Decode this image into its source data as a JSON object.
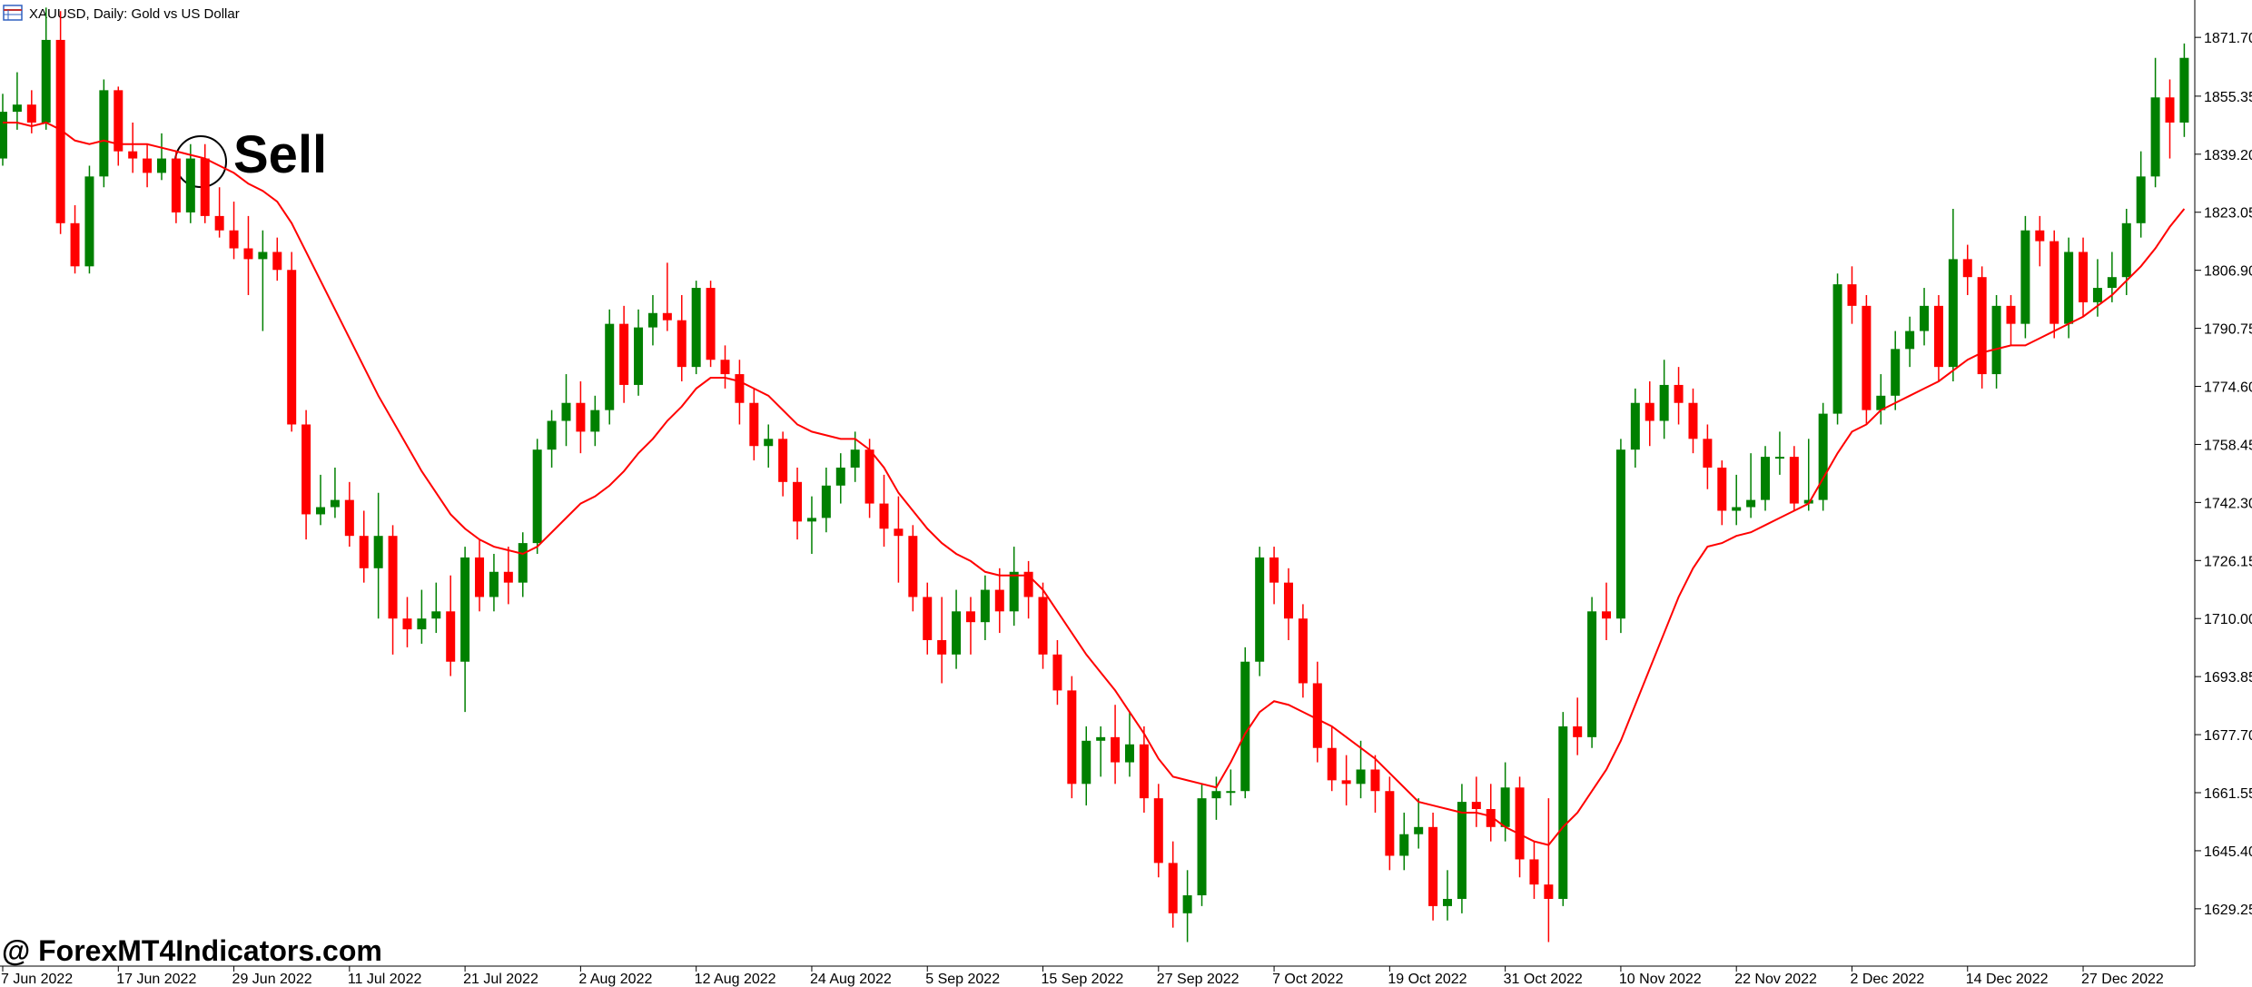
{
  "chart_data": {
    "type": "candlestick",
    "title": "XAUUSD, Daily:  Gold vs US Dollar",
    "annotation": "Sell",
    "watermark": "@ ForexMT4Indicators.com",
    "up_color": "#008000",
    "down_color": "#ff0000",
    "ylim": [
      1613.3,
      1882.1
    ],
    "yticks": [
      {
        "value": 1871.7,
        "label": "1871.70"
      },
      {
        "value": 1855.35,
        "label": "1855.35"
      },
      {
        "value": 1839.2,
        "label": "1839.20"
      },
      {
        "value": 1823.05,
        "label": "1823.05"
      },
      {
        "value": 1806.9,
        "label": "1806.90"
      },
      {
        "value": 1790.75,
        "label": "1790.75"
      },
      {
        "value": 1774.6,
        "label": "1774.60"
      },
      {
        "value": 1758.45,
        "label": "1758.45"
      },
      {
        "value": 1742.3,
        "label": "1742.30"
      },
      {
        "value": 1726.15,
        "label": "1726.15"
      },
      {
        "value": 1710,
        "label": "1710.00"
      },
      {
        "value": 1693.85,
        "label": "1693.85"
      },
      {
        "value": 1677.7,
        "label": "1677.70"
      },
      {
        "value": 1661.55,
        "label": "1661.55"
      },
      {
        "value": 1645.4,
        "label": "1645.40"
      },
      {
        "value": 1629.25,
        "label": "1629.25"
      }
    ],
    "categories": [
      "7 Jun 2022",
      null,
      null,
      null,
      null,
      null,
      null,
      null,
      "17 Jun 2022",
      null,
      null,
      null,
      null,
      null,
      null,
      null,
      "29 Jun 2022",
      null,
      null,
      null,
      null,
      null,
      null,
      null,
      "11 Jul 2022",
      null,
      null,
      null,
      null,
      null,
      null,
      null,
      "21 Jul 2022",
      null,
      null,
      null,
      null,
      null,
      null,
      null,
      "2 Aug 2022",
      null,
      null,
      null,
      null,
      null,
      null,
      null,
      "12 Aug 2022",
      null,
      null,
      null,
      null,
      null,
      null,
      null,
      "24 Aug 2022",
      null,
      null,
      null,
      null,
      null,
      null,
      null,
      "5 Sep 2022",
      null,
      null,
      null,
      null,
      null,
      null,
      null,
      "15 Sep 2022",
      null,
      null,
      null,
      null,
      null,
      null,
      null,
      "27 Sep 2022",
      null,
      null,
      null,
      null,
      null,
      null,
      null,
      "7 Oct 2022",
      null,
      null,
      null,
      null,
      null,
      null,
      null,
      "19 Oct 2022",
      null,
      null,
      null,
      null,
      null,
      null,
      null,
      "31 Oct 2022",
      null,
      null,
      null,
      null,
      null,
      null,
      null,
      "10 Nov 2022",
      null,
      null,
      null,
      null,
      null,
      null,
      null,
      "22 Nov 2022",
      null,
      null,
      null,
      null,
      null,
      null,
      null,
      "2 Dec 2022",
      null,
      null,
      null,
      null,
      null,
      null,
      null,
      "14 Dec 2022",
      null,
      null,
      null,
      null,
      null,
      null,
      null,
      "27 Dec 2022",
      null,
      null,
      null,
      null,
      null,
      null,
      null
    ],
    "candles": [
      [
        1838,
        1856,
        1836,
        1851
      ],
      [
        1851,
        1862,
        1846,
        1853
      ],
      [
        1853,
        1857,
        1845,
        1848
      ],
      [
        1848,
        1880,
        1846,
        1871
      ],
      [
        1871,
        1879,
        1817,
        1820
      ],
      [
        1820,
        1825,
        1806,
        1808
      ],
      [
        1808,
        1836,
        1806,
        1833
      ],
      [
        1833,
        1860,
        1830,
        1857
      ],
      [
        1857,
        1858,
        1836,
        1840
      ],
      [
        1840,
        1848,
        1834,
        1838
      ],
      [
        1838,
        1842,
        1830,
        1834
      ],
      [
        1834,
        1845,
        1832,
        1838
      ],
      [
        1838,
        1840,
        1820,
        1823
      ],
      [
        1823,
        1842,
        1820,
        1838
      ],
      [
        1838,
        1842,
        1820,
        1822
      ],
      [
        1822,
        1830,
        1816,
        1818
      ],
      [
        1818,
        1826,
        1810,
        1813
      ],
      [
        1813,
        1822,
        1800,
        1810
      ],
      [
        1810,
        1818,
        1790,
        1812
      ],
      [
        1812,
        1816,
        1804,
        1807
      ],
      [
        1807,
        1812,
        1762,
        1764
      ],
      [
        1764,
        1768,
        1732,
        1739
      ],
      [
        1739,
        1750,
        1736,
        1741
      ],
      [
        1741,
        1752,
        1738,
        1743
      ],
      [
        1743,
        1748,
        1730,
        1733
      ],
      [
        1733,
        1740,
        1720,
        1724
      ],
      [
        1724,
        1745,
        1710,
        1733
      ],
      [
        1733,
        1736,
        1700,
        1710
      ],
      [
        1710,
        1716,
        1702,
        1707
      ],
      [
        1707,
        1718,
        1703,
        1710
      ],
      [
        1710,
        1720,
        1706,
        1712
      ],
      [
        1712,
        1722,
        1694,
        1698
      ],
      [
        1698,
        1730,
        1684,
        1727
      ],
      [
        1727,
        1732,
        1712,
        1716
      ],
      [
        1716,
        1728,
        1712,
        1723
      ],
      [
        1723,
        1730,
        1714,
        1720
      ],
      [
        1720,
        1734,
        1716,
        1731
      ],
      [
        1731,
        1760,
        1728,
        1757
      ],
      [
        1757,
        1768,
        1752,
        1765
      ],
      [
        1765,
        1778,
        1758,
        1770
      ],
      [
        1770,
        1776,
        1756,
        1762
      ],
      [
        1762,
        1772,
        1758,
        1768
      ],
      [
        1768,
        1796,
        1764,
        1792
      ],
      [
        1792,
        1797,
        1770,
        1775
      ],
      [
        1775,
        1796,
        1772,
        1791
      ],
      [
        1791,
        1800,
        1786,
        1795
      ],
      [
        1795,
        1809,
        1790,
        1793
      ],
      [
        1793,
        1800,
        1776,
        1780
      ],
      [
        1780,
        1804,
        1778,
        1802
      ],
      [
        1802,
        1804,
        1780,
        1782
      ],
      [
        1782,
        1786,
        1774,
        1778
      ],
      [
        1778,
        1782,
        1764,
        1770
      ],
      [
        1770,
        1774,
        1754,
        1758
      ],
      [
        1758,
        1764,
        1752,
        1760
      ],
      [
        1760,
        1762,
        1744,
        1748
      ],
      [
        1748,
        1752,
        1732,
        1737
      ],
      [
        1737,
        1744,
        1728,
        1738
      ],
      [
        1738,
        1752,
        1734,
        1747
      ],
      [
        1747,
        1756,
        1742,
        1752
      ],
      [
        1752,
        1762,
        1748,
        1757
      ],
      [
        1757,
        1760,
        1738,
        1742
      ],
      [
        1742,
        1750,
        1730,
        1735
      ],
      [
        1735,
        1744,
        1720,
        1733
      ],
      [
        1733,
        1736,
        1712,
        1716
      ],
      [
        1716,
        1720,
        1700,
        1704
      ],
      [
        1704,
        1716,
        1692,
        1700
      ],
      [
        1700,
        1718,
        1696,
        1712
      ],
      [
        1712,
        1716,
        1700,
        1709
      ],
      [
        1709,
        1722,
        1704,
        1718
      ],
      [
        1718,
        1724,
        1706,
        1712
      ],
      [
        1712,
        1730,
        1708,
        1723
      ],
      [
        1723,
        1726,
        1710,
        1716
      ],
      [
        1716,
        1720,
        1696,
        1700
      ],
      [
        1700,
        1704,
        1686,
        1690
      ],
      [
        1690,
        1694,
        1660,
        1664
      ],
      [
        1664,
        1680,
        1658,
        1676
      ],
      [
        1676,
        1680,
        1666,
        1677
      ],
      [
        1677,
        1686,
        1664,
        1670
      ],
      [
        1670,
        1684,
        1666,
        1675
      ],
      [
        1675,
        1680,
        1656,
        1660
      ],
      [
        1660,
        1664,
        1638,
        1642
      ],
      [
        1642,
        1648,
        1624,
        1628
      ],
      [
        1628,
        1640,
        1620,
        1633
      ],
      [
        1633,
        1664,
        1630,
        1660
      ],
      [
        1660,
        1666,
        1654,
        1662
      ],
      [
        1662,
        1668,
        1658,
        1662
      ],
      [
        1662,
        1702,
        1660,
        1698
      ],
      [
        1698,
        1730,
        1694,
        1727
      ],
      [
        1727,
        1730,
        1714,
        1720
      ],
      [
        1720,
        1724,
        1704,
        1710
      ],
      [
        1710,
        1714,
        1688,
        1692
      ],
      [
        1692,
        1698,
        1670,
        1674
      ],
      [
        1674,
        1680,
        1662,
        1665
      ],
      [
        1665,
        1672,
        1658,
        1664
      ],
      [
        1664,
        1676,
        1660,
        1668
      ],
      [
        1668,
        1672,
        1656,
        1662
      ],
      [
        1662,
        1666,
        1640,
        1644
      ],
      [
        1644,
        1656,
        1640,
        1650
      ],
      [
        1650,
        1660,
        1646,
        1652
      ],
      [
        1652,
        1656,
        1626,
        1630
      ],
      [
        1630,
        1640,
        1626,
        1632
      ],
      [
        1632,
        1664,
        1628,
        1659
      ],
      [
        1659,
        1666,
        1652,
        1657
      ],
      [
        1657,
        1664,
        1648,
        1652
      ],
      [
        1652,
        1670,
        1648,
        1663
      ],
      [
        1663,
        1666,
        1638,
        1643
      ],
      [
        1643,
        1648,
        1632,
        1636
      ],
      [
        1636,
        1660,
        1620,
        1632
      ],
      [
        1632,
        1684,
        1630,
        1680
      ],
      [
        1680,
        1688,
        1672,
        1677
      ],
      [
        1677,
        1716,
        1674,
        1712
      ],
      [
        1712,
        1720,
        1704,
        1710
      ],
      [
        1710,
        1760,
        1706,
        1757
      ],
      [
        1757,
        1774,
        1752,
        1770
      ],
      [
        1770,
        1776,
        1758,
        1765
      ],
      [
        1765,
        1782,
        1760,
        1775
      ],
      [
        1775,
        1780,
        1764,
        1770
      ],
      [
        1770,
        1774,
        1756,
        1760
      ],
      [
        1760,
        1764,
        1746,
        1752
      ],
      [
        1752,
        1754,
        1736,
        1740
      ],
      [
        1740,
        1750,
        1736,
        1741
      ],
      [
        1741,
        1756,
        1738,
        1743
      ],
      [
        1743,
        1758,
        1740,
        1755
      ],
      [
        1755,
        1762,
        1750,
        1755
      ],
      [
        1755,
        1758,
        1740,
        1742
      ],
      [
        1742,
        1760,
        1740,
        1743
      ],
      [
        1743,
        1770,
        1740,
        1767
      ],
      [
        1767,
        1806,
        1764,
        1803
      ],
      [
        1803,
        1808,
        1792,
        1797
      ],
      [
        1797,
        1800,
        1764,
        1768
      ],
      [
        1768,
        1778,
        1764,
        1772
      ],
      [
        1772,
        1790,
        1768,
        1785
      ],
      [
        1785,
        1794,
        1780,
        1790
      ],
      [
        1790,
        1802,
        1786,
        1797
      ],
      [
        1797,
        1800,
        1776,
        1780
      ],
      [
        1780,
        1824,
        1776,
        1810
      ],
      [
        1810,
        1814,
        1800,
        1805
      ],
      [
        1805,
        1808,
        1774,
        1778
      ],
      [
        1778,
        1800,
        1774,
        1797
      ],
      [
        1797,
        1800,
        1786,
        1792
      ],
      [
        1792,
        1822,
        1788,
        1818
      ],
      [
        1818,
        1822,
        1808,
        1815
      ],
      [
        1815,
        1818,
        1788,
        1792
      ],
      [
        1792,
        1816,
        1788,
        1812
      ],
      [
        1812,
        1816,
        1794,
        1798
      ],
      [
        1798,
        1810,
        1794,
        1802
      ],
      [
        1802,
        1812,
        1798,
        1805
      ],
      [
        1805,
        1824,
        1800,
        1820
      ],
      [
        1820,
        1840,
        1816,
        1833
      ],
      [
        1833,
        1866,
        1830,
        1855
      ],
      [
        1855,
        1860,
        1838,
        1848
      ],
      [
        1848,
        1870,
        1844,
        1866
      ]
    ],
    "ma": {
      "color": "#ff0000",
      "values": [
        1848,
        1848,
        1847,
        1848,
        1846,
        1843,
        1842,
        1843,
        1842,
        1842,
        1842,
        1841,
        1840,
        1839,
        1838,
        1836,
        1834,
        1831,
        1829,
        1826,
        1820,
        1812,
        1804,
        1796,
        1788,
        1780,
        1772,
        1765,
        1758,
        1751,
        1745,
        1739,
        1735,
        1732,
        1730,
        1729,
        1728,
        1730,
        1734,
        1738,
        1742,
        1744,
        1747,
        1751,
        1756,
        1760,
        1765,
        1769,
        1774,
        1777,
        1777,
        1776,
        1774,
        1772,
        1768,
        1764,
        1762,
        1761,
        1760,
        1760,
        1757,
        1752,
        1745,
        1740,
        1735,
        1731,
        1728,
        1726,
        1723,
        1722,
        1722,
        1722,
        1718,
        1712,
        1706,
        1700,
        1695,
        1690,
        1684,
        1678,
        1671,
        1666,
        1665,
        1664,
        1663,
        1670,
        1678,
        1684,
        1687,
        1686,
        1684,
        1682,
        1680,
        1677,
        1674,
        1671,
        1667,
        1663,
        1659,
        1658,
        1657,
        1656,
        1656,
        1655,
        1652,
        1650,
        1648,
        1647,
        1652,
        1656,
        1662,
        1668,
        1676,
        1686,
        1696,
        1706,
        1716,
        1724,
        1730,
        1731,
        1733,
        1734,
        1736,
        1738,
        1740,
        1742,
        1749,
        1756,
        1762,
        1764,
        1768,
        1770,
        1772,
        1774,
        1776,
        1779,
        1782,
        1784,
        1785,
        1786,
        1786,
        1788,
        1790,
        1792,
        1794,
        1797,
        1800,
        1804,
        1808,
        1813,
        1819,
        1824
      ]
    }
  }
}
